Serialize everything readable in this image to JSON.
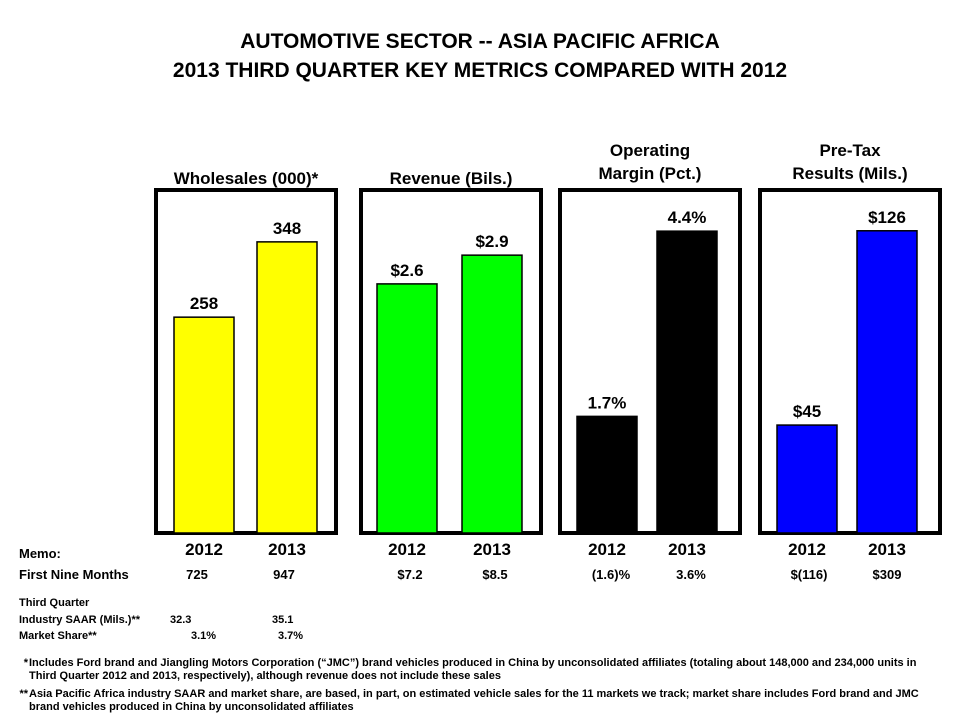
{
  "title": {
    "line1": "AUTOMOTIVE SECTOR -- ASIA PACIFIC AFRICA",
    "line2": "2013 THIRD QUARTER KEY METRICS COMPARED WITH 2012"
  },
  "chart_data": [
    {
      "type": "bar",
      "title": "Wholesales (000)*",
      "categories": [
        "2012",
        "2013"
      ],
      "values": [
        258,
        348
      ],
      "value_labels": [
        "258",
        "348"
      ],
      "color": "#FFFF00",
      "ylim": [
        0,
        410
      ]
    },
    {
      "type": "bar",
      "title": "Revenue (Bils.)",
      "categories": [
        "2012",
        "2013"
      ],
      "values": [
        2.6,
        2.9
      ],
      "value_labels": [
        "$2.6",
        "$2.9"
      ],
      "color": "#00FF00",
      "ylim": [
        0,
        3.58
      ]
    },
    {
      "type": "bar",
      "title": "Operating Margin (Pct.)",
      "title_lines": [
        "Operating",
        "Margin (Pct.)"
      ],
      "categories": [
        "2012",
        "2013"
      ],
      "values": [
        1.7,
        4.4
      ],
      "value_labels": [
        "1.7%",
        "4.4%"
      ],
      "color": "#000000",
      "ylim": [
        0,
        5.0
      ]
    },
    {
      "type": "bar",
      "title": "Pre-Tax Results (Mils.)",
      "title_lines": [
        "Pre-Tax",
        "Results (Mils.)"
      ],
      "categories": [
        "2012",
        "2013"
      ],
      "values": [
        45,
        126
      ],
      "value_labels": [
        "$45",
        "$126"
      ],
      "color": "#0000FF",
      "ylim": [
        0,
        143
      ]
    }
  ],
  "memo": {
    "label": "Memo:",
    "first_nine_label": "First Nine Months",
    "first_nine_values": [
      "725",
      "947",
      "$7.2",
      "$8.5",
      "(1.6)%",
      "3.6%",
      "$(116)",
      "$309"
    ],
    "third_quarter_label": "Third Quarter",
    "saar_label": "Industry SAAR (Mils.)**",
    "saar_values": [
      "32.3",
      "35.1"
    ],
    "share_label": "Market Share**",
    "share_values": [
      "3.1%",
      "3.7%"
    ]
  },
  "footnotes": [
    {
      "mark": "*",
      "text": "Includes Ford brand and Jiangling Motors Corporation (“JMC”) brand vehicles produced in China by unconsolidated affiliates (totaling about 148,000 and 234,000 units in Third Quarter 2012 and 2013, respectively), although revenue does not include these sales"
    },
    {
      "mark": "**",
      "text": "Asia Pacific Africa industry  SAAR and market share, are based, in part, on estimated vehicle sales for the 11 markets we track; market share includes Ford brand and JMC brand vehicles produced in China by unconsolidated affiliates"
    }
  ]
}
